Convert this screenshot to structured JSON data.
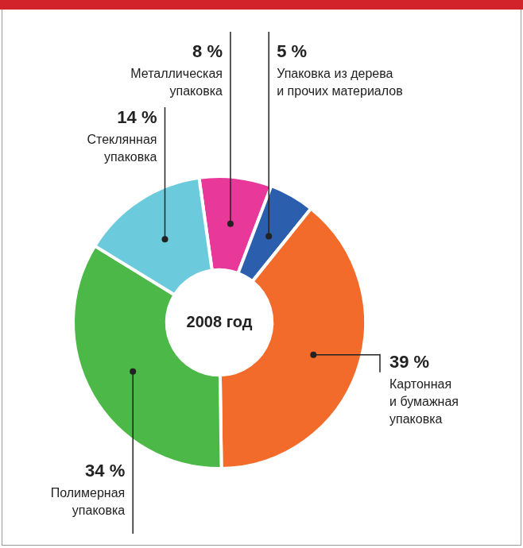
{
  "chart_data": {
    "type": "doughnut",
    "title": "2008 год",
    "categories": [
      "Металлическая упаковка",
      "Упаковка из дерева и прочих материалов",
      "Картонная и бумажная упаковка",
      "Полимерная упаковка",
      "Стеклянная упаковка"
    ],
    "values": [
      8,
      5,
      39,
      34,
      14
    ],
    "value_labels": [
      "8 %",
      "5 %",
      "39 %",
      "34 %",
      "14 %"
    ],
    "colors": [
      "#e8399a",
      "#2b5fad",
      "#f26b2a",
      "#4cb848",
      "#6bcbdc"
    ],
    "data_labels": true
  }
}
